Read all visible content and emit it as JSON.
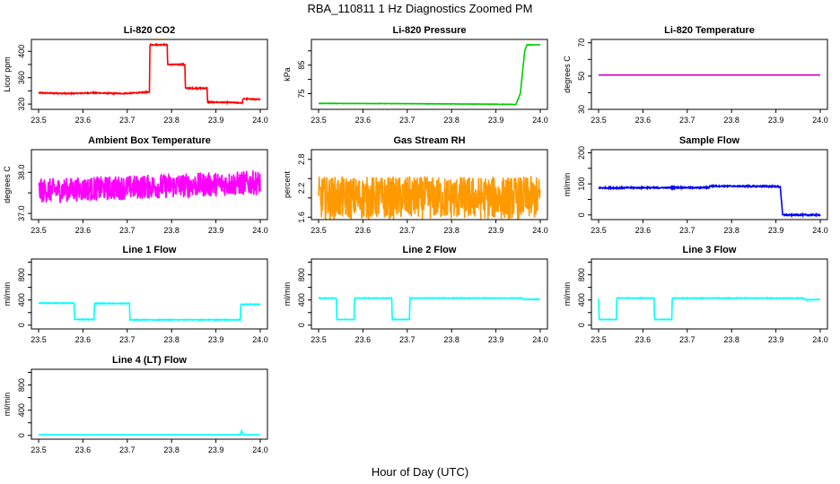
{
  "figure": {
    "title": "RBA_110811  1 Hz Diagnostics Zoomed PM",
    "xlabel": "Hour of Day (UTC)"
  },
  "chart_data": [
    {
      "type": "line",
      "title": "Li-820 CO2",
      "ylabel": "Licor ppm",
      "xlim": [
        23.5,
        24.0
      ],
      "ylim": [
        312,
        418
      ],
      "x_ticks": [
        "23.5",
        "23.6",
        "23.7",
        "23.8",
        "23.9",
        "24.0"
      ],
      "y_ticks": [
        320,
        340,
        360,
        380,
        400
      ],
      "y_tick_labels": [
        "320",
        "",
        "360",
        "",
        "400"
      ],
      "color": "#ff0000",
      "series": [
        {
          "name": "CO2",
          "x": [
            23.5,
            23.57,
            23.62,
            23.69,
            23.75,
            23.751,
            23.79,
            23.791,
            23.83,
            23.831,
            23.88,
            23.881,
            23.96,
            23.961,
            24.0
          ],
          "y": [
            337,
            336,
            337,
            336,
            338,
            410,
            410,
            380,
            380,
            344,
            344,
            323,
            322,
            328,
            327
          ],
          "noise": 1.5
        }
      ]
    },
    {
      "type": "line",
      "title": "Li-820 Pressure",
      "ylabel": "kPa",
      "xlim": [
        23.5,
        24.0
      ],
      "ylim": [
        69.5,
        94
      ],
      "x_ticks": [
        "23.5",
        "23.6",
        "23.7",
        "23.8",
        "23.9",
        "24.0"
      ],
      "y_ticks": [
        75,
        80,
        85,
        90
      ],
      "y_tick_labels": [
        "75",
        "",
        "85",
        ""
      ],
      "color": "#00cc00",
      "series": [
        {
          "name": "Pressure",
          "x": [
            23.5,
            23.7,
            23.9,
            23.945,
            23.955,
            23.965,
            23.97,
            24.0
          ],
          "y": [
            71.6,
            71.5,
            71.3,
            71.2,
            75,
            90,
            92.1,
            92.1
          ],
          "noise": 0.12
        }
      ]
    },
    {
      "type": "line",
      "title": "Li-820 Temperature",
      "ylabel": "degrees C",
      "xlim": [
        23.5,
        24.0
      ],
      "ylim": [
        30,
        72
      ],
      "x_ticks": [
        "23.5",
        "23.6",
        "23.7",
        "23.8",
        "23.9",
        "24.0"
      ],
      "y_ticks": [
        30,
        40,
        50,
        60,
        70
      ],
      "y_tick_labels": [
        "30",
        "",
        "50",
        "",
        "70"
      ],
      "color": "#cc00cc",
      "series": [
        {
          "name": "Temperature",
          "x": [
            23.5,
            24.0
          ],
          "y": [
            50.6,
            50.6
          ],
          "noise": 0
        }
      ]
    },
    {
      "type": "line",
      "title": "Ambient Box Temperature",
      "ylabel": "degrees C",
      "xlim": [
        23.5,
        24.0
      ],
      "ylim": [
        36.85,
        38.55
      ],
      "x_ticks": [
        "23.5",
        "23.6",
        "23.7",
        "23.8",
        "23.9",
        "24.0"
      ],
      "y_ticks": [
        37.0,
        37.5,
        38.0
      ],
      "y_tick_labels": [
        "37.0",
        "",
        "38.0"
      ],
      "color": "#ff00ff",
      "series": [
        {
          "name": "Ambient",
          "x": [
            23.5,
            24.0
          ],
          "y": [
            37.55,
            37.75
          ],
          "noise": 0.6
        }
      ]
    },
    {
      "type": "line",
      "title": "Gas Stream RH",
      "ylabel": "percent",
      "xlim": [
        23.5,
        24.0
      ],
      "ylim": [
        1.55,
        3.0
      ],
      "x_ticks": [
        "23.5",
        "23.6",
        "23.7",
        "23.8",
        "23.9",
        "24.0"
      ],
      "y_ticks": [
        1.6,
        2.0,
        2.4,
        2.8
      ],
      "y_tick_labels": [
        "1.6",
        "2.2",
        "2.8"
      ],
      "y_tick_label_values": [
        1.6,
        2.2,
        2.8
      ],
      "color": "#ff9900",
      "series": [
        {
          "name": "RH",
          "x": [
            23.5,
            24.0
          ],
          "y": [
            2.0,
            2.0
          ],
          "noise": 0.9
        }
      ]
    },
    {
      "type": "line",
      "title": "Sample Flow",
      "ylabel": "ml/min",
      "xlim": [
        23.5,
        24.0
      ],
      "ylim": [
        -15,
        210
      ],
      "x_ticks": [
        "23.5",
        "23.6",
        "23.7",
        "23.8",
        "23.9",
        "24.0"
      ],
      "y_ticks": [
        0,
        50,
        100,
        150,
        200
      ],
      "y_tick_labels": [
        "0",
        "",
        "100",
        "",
        "200"
      ],
      "color": "#0000ee",
      "series": [
        {
          "name": "Sample Flow",
          "x": [
            23.5,
            23.75,
            23.751,
            23.9,
            23.91,
            23.915,
            24.0
          ],
          "y": [
            87,
            88,
            93,
            92,
            90,
            0,
            0
          ],
          "noise": 4
        }
      ]
    },
    {
      "type": "line",
      "title": "Line 1 Flow",
      "ylabel": "ml/min",
      "xlim": [
        23.5,
        24.0
      ],
      "ylim": [
        -60,
        1050
      ],
      "x_ticks": [
        "23.5",
        "23.6",
        "23.7",
        "23.8",
        "23.9",
        "24.0"
      ],
      "y_ticks": [
        0,
        200,
        400,
        600,
        800,
        1000
      ],
      "y_tick_labels": [
        "0",
        "",
        "400",
        "",
        "800",
        ""
      ],
      "color": "#00ffff",
      "series": [
        {
          "name": "Line 1",
          "x": [
            23.5,
            23.58,
            23.581,
            23.625,
            23.626,
            23.705,
            23.706,
            23.955,
            23.956,
            24.0
          ],
          "y": [
            350,
            350,
            90,
            90,
            345,
            345,
            85,
            85,
            330,
            330
          ],
          "noise": 10
        }
      ]
    },
    {
      "type": "line",
      "title": "Line 2 Flow",
      "ylabel": "ml/min",
      "xlim": [
        23.5,
        24.0
      ],
      "ylim": [
        -60,
        1050
      ],
      "x_ticks": [
        "23.5",
        "23.6",
        "23.7",
        "23.8",
        "23.9",
        "24.0"
      ],
      "y_ticks": [
        0,
        200,
        400,
        600,
        800,
        1000
      ],
      "y_tick_labels": [
        "0",
        "",
        "400",
        "",
        "800",
        ""
      ],
      "color": "#00ffff",
      "series": [
        {
          "name": "Line 2",
          "x": [
            23.5,
            23.54,
            23.541,
            23.58,
            23.581,
            23.665,
            23.666,
            23.705,
            23.706,
            23.96,
            23.961,
            24.0
          ],
          "y": [
            430,
            430,
            90,
            90,
            430,
            430,
            90,
            90,
            430,
            430,
            410,
            410
          ],
          "noise": 8
        }
      ]
    },
    {
      "type": "line",
      "title": "Line 3 Flow",
      "ylabel": "ml/min",
      "xlim": [
        23.5,
        24.0
      ],
      "ylim": [
        -60,
        1050
      ],
      "x_ticks": [
        "23.5",
        "23.6",
        "23.7",
        "23.8",
        "23.9",
        "24.0"
      ],
      "y_ticks": [
        0,
        200,
        400,
        600,
        800,
        1000
      ],
      "y_tick_labels": [
        "0",
        "",
        "400",
        "",
        "800",
        ""
      ],
      "color": "#00ffff",
      "series": [
        {
          "name": "Line 3",
          "x": [
            23.5,
            23.501,
            23.54,
            23.541,
            23.625,
            23.626,
            23.665,
            23.666,
            23.96,
            23.97,
            24.0
          ],
          "y": [
            420,
            90,
            90,
            430,
            430,
            90,
            90,
            430,
            430,
            400,
            410
          ],
          "noise": 8
        }
      ]
    },
    {
      "type": "line",
      "title": "Line 4 (LT) Flow",
      "ylabel": "ml/min",
      "xlim": [
        23.5,
        24.0
      ],
      "ylim": [
        -60,
        1050
      ],
      "x_ticks": [
        "23.5",
        "23.6",
        "23.7",
        "23.8",
        "23.9",
        "24.0"
      ],
      "y_ticks": [
        0,
        200,
        400,
        600,
        800,
        1000
      ],
      "y_tick_labels": [
        "0",
        "",
        "400",
        "",
        "800",
        ""
      ],
      "color": "#00ffff",
      "series": [
        {
          "name": "Line 4",
          "x": [
            23.5,
            23.955,
            23.958,
            23.961,
            23.965,
            24.0
          ],
          "y": [
            10,
            10,
            80,
            10,
            10,
            10
          ],
          "noise": 3
        }
      ]
    }
  ]
}
